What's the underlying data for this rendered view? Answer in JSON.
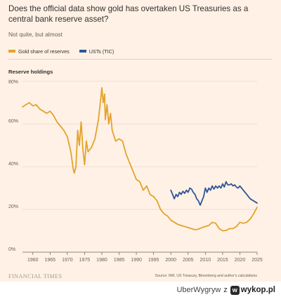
{
  "card": {
    "title": "Does the official data show gold has overtaken US Treasuries as a central bank reserve asset?",
    "subtitle": "Not quite, but almost",
    "legend": [
      {
        "label": "Gold share of reserves",
        "color": "#e3a32b"
      },
      {
        "label": "USTs (TIC)",
        "color": "#2f5597"
      }
    ],
    "source": "Source: IMF, US Treasury, Bloomberg and author's calculations",
    "publisher": "FINANCIAL TIMES"
  },
  "chart_data": {
    "type": "line",
    "title": "Reserve holdings",
    "xlabel": "",
    "ylabel": "",
    "xlim": [
      1957,
      2025
    ],
    "ylim": [
      0,
      80
    ],
    "x_ticks": [
      1960,
      1965,
      1970,
      1975,
      1980,
      1985,
      1990,
      1995,
      2000,
      2005,
      2010,
      2015,
      2020,
      2025
    ],
    "y_ticks": [
      0,
      20,
      40,
      60,
      80
    ],
    "y_tick_labels": [
      "0%",
      "20%",
      "40%",
      "60%",
      "80%"
    ],
    "grid": true,
    "legend_position": "top-left",
    "series": [
      {
        "name": "Gold share of reserves",
        "color": "#e3a32b",
        "points": [
          [
            1957,
            68
          ],
          [
            1958,
            69
          ],
          [
            1959,
            70
          ],
          [
            1960,
            68.5
          ],
          [
            1961,
            69
          ],
          [
            1962,
            67
          ],
          [
            1963,
            66
          ],
          [
            1964,
            65
          ],
          [
            1965,
            66
          ],
          [
            1966,
            64
          ],
          [
            1967,
            61
          ],
          [
            1968,
            59
          ],
          [
            1969,
            57
          ],
          [
            1970,
            54
          ],
          [
            1971,
            47
          ],
          [
            1971.7,
            39
          ],
          [
            1972,
            37
          ],
          [
            1972.5,
            40
          ],
          [
            1973,
            57
          ],
          [
            1973.5,
            50
          ],
          [
            1974,
            61
          ],
          [
            1974.5,
            48
          ],
          [
            1975,
            41
          ],
          [
            1975.5,
            52
          ],
          [
            1976,
            47
          ],
          [
            1977,
            49
          ],
          [
            1978,
            53
          ],
          [
            1979,
            62
          ],
          [
            1979.7,
            72
          ],
          [
            1980,
            77
          ],
          [
            1980.4,
            70
          ],
          [
            1980.8,
            74
          ],
          [
            1981,
            62
          ],
          [
            1981.5,
            69
          ],
          [
            1982,
            60
          ],
          [
            1982.5,
            65
          ],
          [
            1983,
            57
          ],
          [
            1984,
            52
          ],
          [
            1985,
            53
          ],
          [
            1986,
            52
          ],
          [
            1987,
            46
          ],
          [
            1988,
            42
          ],
          [
            1989,
            38
          ],
          [
            1990,
            34
          ],
          [
            1991,
            33
          ],
          [
            1992,
            29
          ],
          [
            1993,
            31
          ],
          [
            1994,
            27
          ],
          [
            1995,
            26
          ],
          [
            1996,
            24
          ],
          [
            1997,
            20
          ],
          [
            1998,
            18
          ],
          [
            1999,
            17
          ],
          [
            2000,
            15
          ],
          [
            2001,
            14
          ],
          [
            2002,
            13
          ],
          [
            2003,
            12.5
          ],
          [
            2004,
            12
          ],
          [
            2005,
            11.5
          ],
          [
            2006,
            11
          ],
          [
            2007,
            10.5
          ],
          [
            2008,
            10.8
          ],
          [
            2009,
            11.5
          ],
          [
            2010,
            12
          ],
          [
            2011,
            12.5
          ],
          [
            2012,
            14
          ],
          [
            2013,
            13.5
          ],
          [
            2014,
            11
          ],
          [
            2015,
            10
          ],
          [
            2016,
            10.2
          ],
          [
            2017,
            11
          ],
          [
            2018,
            11
          ],
          [
            2019,
            12
          ],
          [
            2020,
            14
          ],
          [
            2021,
            13.5
          ],
          [
            2022,
            14
          ],
          [
            2023,
            15.5
          ],
          [
            2024,
            18
          ],
          [
            2025,
            21
          ]
        ]
      },
      {
        "name": "USTs (TIC)",
        "color": "#2f5597",
        "points": [
          [
            2000,
            29
          ],
          [
            2000.5,
            27
          ],
          [
            2001,
            25
          ],
          [
            2001.5,
            27
          ],
          [
            2002,
            26
          ],
          [
            2002.5,
            28
          ],
          [
            2003,
            27
          ],
          [
            2003.5,
            28.5
          ],
          [
            2004,
            27.5
          ],
          [
            2004.5,
            29
          ],
          [
            2005,
            28
          ],
          [
            2005.5,
            30
          ],
          [
            2006,
            29.5
          ],
          [
            2006.5,
            28
          ],
          [
            2007,
            27
          ],
          [
            2007.5,
            25
          ],
          [
            2008,
            24
          ],
          [
            2008.5,
            22
          ],
          [
            2009,
            24
          ],
          [
            2009.5,
            26
          ],
          [
            2010,
            30
          ],
          [
            2010.5,
            28
          ],
          [
            2011,
            30
          ],
          [
            2011.5,
            29
          ],
          [
            2012,
            31
          ],
          [
            2012.5,
            29.5
          ],
          [
            2013,
            31
          ],
          [
            2013.5,
            30
          ],
          [
            2014,
            31
          ],
          [
            2014.5,
            30
          ],
          [
            2015,
            32
          ],
          [
            2015.5,
            30.5
          ],
          [
            2016,
            33
          ],
          [
            2016.5,
            31.5
          ],
          [
            2017,
            31.5
          ],
          [
            2017.5,
            32
          ],
          [
            2018,
            31
          ],
          [
            2018.5,
            31.5
          ],
          [
            2019,
            30.5
          ],
          [
            2019.5,
            30
          ],
          [
            2020,
            31
          ],
          [
            2020.5,
            30
          ],
          [
            2021,
            29
          ],
          [
            2021.5,
            28
          ],
          [
            2022,
            27
          ],
          [
            2022.5,
            26
          ],
          [
            2023,
            25
          ],
          [
            2023.5,
            24.5
          ],
          [
            2024,
            24
          ],
          [
            2024.5,
            23.5
          ],
          [
            2025,
            23
          ]
        ]
      }
    ]
  },
  "footer": {
    "user": "UberWygryw",
    "connector": "z",
    "site": "wykop.pl",
    "logo_icon": "wykop-w-icon"
  }
}
